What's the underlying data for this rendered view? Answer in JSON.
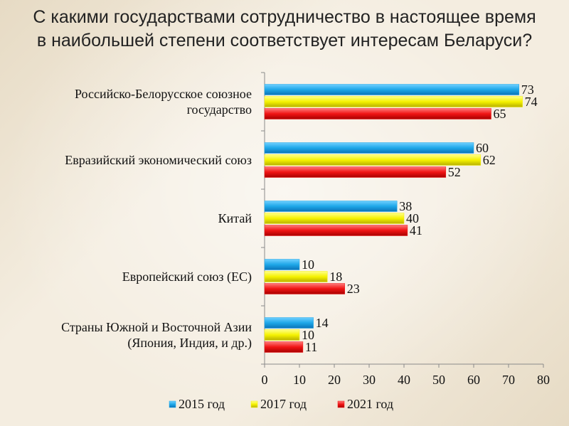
{
  "title": {
    "line1": "С какими государствами  сотрудничество в настоящее время",
    "line2": "в наибольшей степени соответствует интересам Беларуси?"
  },
  "chart_data": {
    "type": "bar",
    "orientation": "horizontal",
    "categories": [
      [
        "Российско-Белорусское союзное",
        "государство"
      ],
      [
        "Евразийский экономический союз"
      ],
      [
        "Китай"
      ],
      [
        "Европейский союз (ЕС)"
      ],
      [
        "Страны Южной и Восточной Азии",
        "(Япония, Индия, и др.)"
      ]
    ],
    "series": [
      {
        "name": "2015 год",
        "values": [
          73,
          60,
          38,
          10,
          14
        ],
        "color": "#1ea7e8"
      },
      {
        "name": "2017 год",
        "values": [
          74,
          62,
          40,
          18,
          10
        ],
        "color": "#f5f200"
      },
      {
        "name": "2021 год",
        "values": [
          65,
          52,
          41,
          23,
          11
        ],
        "color": "#f01414"
      }
    ],
    "xlim": [
      0,
      80
    ],
    "xticks": [
      0,
      10,
      20,
      30,
      40,
      50,
      60,
      70,
      80
    ],
    "grid": false,
    "legend_position": "bottom"
  }
}
